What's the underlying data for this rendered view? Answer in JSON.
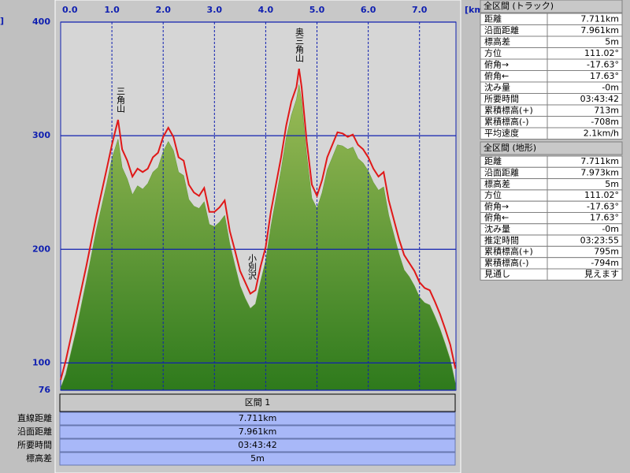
{
  "chart_data": {
    "type": "line",
    "x_label": "[km]",
    "y_label": "]",
    "x": [
      0,
      0.1,
      0.3,
      0.5,
      0.7,
      0.9,
      1,
      1.12,
      1.2,
      1.3,
      1.4,
      1.5,
      1.6,
      1.7,
      1.8,
      1.9,
      2,
      2.1,
      2.2,
      2.3,
      2.4,
      2.5,
      2.6,
      2.7,
      2.8,
      2.9,
      3,
      3.1,
      3.2,
      3.3,
      3.4,
      3.5,
      3.6,
      3.7,
      3.8,
      3.9,
      4,
      4.1,
      4.2,
      4.3,
      4.4,
      4.5,
      4.6,
      4.65,
      4.7,
      4.8,
      4.9,
      5,
      5.1,
      5.2,
      5.3,
      5.4,
      5.5,
      5.6,
      5.7,
      5.8,
      5.9,
      6,
      6.1,
      6.2,
      6.3,
      6.4,
      6.5,
      6.6,
      6.7,
      6.8,
      6.9,
      7,
      7.1,
      7.2,
      7.3,
      7.4,
      7.5,
      7.6,
      7.7
    ],
    "series": [
      {
        "color": "#e01818",
        "values": [
          85,
          102,
          143,
          185,
          230,
          271,
          292,
          314,
          288,
          278,
          264,
          271,
          268,
          271,
          281,
          285,
          299,
          307,
          299,
          281,
          278,
          257,
          250,
          247,
          254,
          233,
          233,
          237,
          243,
          216,
          199,
          181,
          171,
          161,
          164,
          185,
          202,
          233,
          257,
          281,
          309,
          330,
          343,
          359,
          343,
          295,
          257,
          247,
          261,
          281,
          292,
          303,
          302,
          299,
          301,
          292,
          288,
          281,
          271,
          264,
          268,
          243,
          226,
          209,
          195,
          188,
          181,
          171,
          166,
          164,
          154,
          143,
          130,
          116,
          95
        ]
      },
      {
        "color": "#5e9a30",
        "fill": true,
        "values": [
          78,
          90,
          128,
          172,
          218,
          258,
          280,
          297,
          272,
          262,
          248,
          256,
          253,
          258,
          268,
          272,
          286,
          295,
          287,
          268,
          265,
          244,
          238,
          236,
          242,
          222,
          220,
          224,
          230,
          205,
          186,
          168,
          157,
          148,
          152,
          172,
          190,
          220,
          245,
          270,
          298,
          318,
          332,
          345,
          330,
          283,
          245,
          236,
          250,
          270,
          281,
          292,
          291,
          288,
          290,
          280,
          276,
          269,
          259,
          252,
          255,
          230,
          213,
          196,
          182,
          176,
          168,
          158,
          153,
          151,
          141,
          130,
          117,
          103,
          82
        ]
      }
    ],
    "annotations": [
      "三角山",
      "奥三角山",
      "小別沢"
    ],
    "xlim": [
      0,
      7.711
    ],
    "xticks": [
      {
        "value": 0,
        "label": "0.0"
      },
      {
        "value": 1,
        "label": "1.0"
      },
      {
        "value": 2,
        "label": "2.0"
      },
      {
        "value": 3,
        "label": "3.0"
      },
      {
        "value": 4,
        "label": "4.0"
      },
      {
        "value": 5,
        "label": "5.0"
      },
      {
        "value": 6,
        "label": "6.0"
      },
      {
        "value": 7,
        "label": "7.0"
      }
    ],
    "ylim": [
      76,
      400
    ],
    "yticks": [
      76,
      100,
      200,
      300,
      400
    ],
    "grid": true
  },
  "section": {
    "title": "区間 1",
    "rows": [
      [
        "直線距離",
        "7.711km"
      ],
      [
        "沿面距離",
        "7.961km"
      ],
      [
        "所要時間",
        "03:43:42"
      ],
      [
        "標高差",
        "5m"
      ]
    ]
  },
  "track_table": {
    "title": "全区間 (トラック)",
    "rows": [
      [
        "距離",
        "7.711km"
      ],
      [
        "沿面距離",
        "7.961km"
      ],
      [
        "標高差",
        "5m"
      ],
      [
        "方位",
        "111.02°"
      ],
      [
        "俯角→",
        "-17.63°"
      ],
      [
        "俯角←",
        "17.63°"
      ],
      [
        "沈み量",
        "-0m"
      ],
      [
        "所要時間",
        "03:43:42"
      ],
      [
        "累積標高(+)",
        "713m"
      ],
      [
        "累積標高(-)",
        "-708m"
      ],
      [
        "平均速度",
        "2.1km/h"
      ]
    ]
  },
  "terrain_table": {
    "title": "全区間 (地形)",
    "rows": [
      [
        "距離",
        "7.711km"
      ],
      [
        "沿面距離",
        "7.973km"
      ],
      [
        "標高差",
        "5m"
      ],
      [
        "方位",
        "111.02°"
      ],
      [
        "俯角→",
        "-17.63°"
      ],
      [
        "俯角←",
        "17.63°"
      ],
      [
        "沈み量",
        "-0m"
      ],
      [
        "推定時間",
        "03:23:55"
      ],
      [
        "累積標高(+)",
        "795m"
      ],
      [
        "累積標高(-)",
        "-794m"
      ],
      [
        "見通し",
        "見えます"
      ]
    ]
  }
}
